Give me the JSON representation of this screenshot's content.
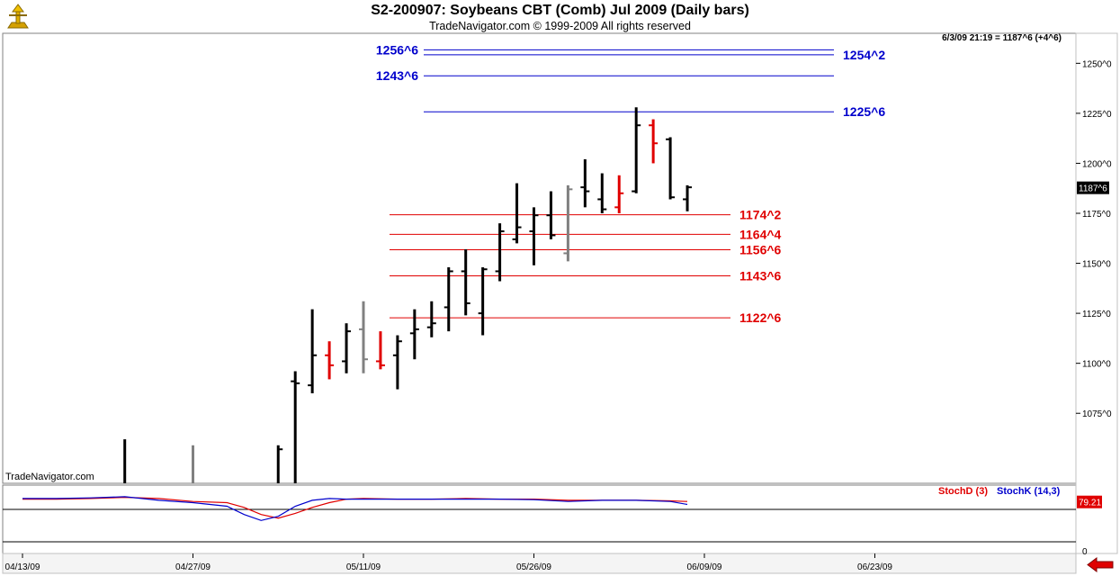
{
  "header": {
    "title": "S2-200907:  Soybeans CBT (Comb) Jul 2009  (Daily bars)",
    "subtitle": "TradeNavigator.com © 1999-2009 All rights reserved",
    "readout": "6/3/09 21:19 = 1187^6 (+4^6)",
    "watermark": "TradeNavigator.com"
  },
  "stoch_legend": {
    "d_label": "StochD (3)",
    "k_label": "StochK (14,3)",
    "d_color": "#e00000",
    "k_color": "#0000cc"
  },
  "nav": {
    "icon": "red-left-arrow-icon"
  },
  "chart_data": [
    {
      "type": "ohlc",
      "title": "S2-200907:  Soybeans CBT (Comb) Jul 2009  (Daily bars)",
      "y_ticks": [
        1075,
        1100,
        1125,
        1150,
        1175,
        1200,
        1225,
        1250
      ],
      "y_tick_labels": [
        "1075^0",
        "1100^0",
        "1125^0",
        "1150^0",
        "1175^0",
        "1200^0",
        "1225^0",
        "1250^0"
      ],
      "ylim": [
        1040,
        1265
      ],
      "x_tick_labels": [
        "04/13/09",
        "04/27/09",
        "05/11/09",
        "05/26/09",
        "06/09/09",
        "06/23/09"
      ],
      "x_tick_index": [
        0,
        10,
        20,
        30,
        40,
        50
      ],
      "last_price_label": "1187^6",
      "colors": {
        "up": "#000000",
        "down": "#e00000",
        "neutral": "#808080"
      },
      "bars": [
        {
          "i": 6,
          "o": null,
          "h": 1062,
          "l": 1040,
          "c": null,
          "color": "#000000"
        },
        {
          "i": 10,
          "o": null,
          "h": 1059,
          "l": 1040,
          "c": null,
          "color": "#808080"
        },
        {
          "i": 15,
          "o": null,
          "h": 1059,
          "l": 1040,
          "c": 1057,
          "color": "#000000"
        },
        {
          "i": 16,
          "o": 1091,
          "h": 1096,
          "l": 1040,
          "c": 1090,
          "color": "#000000"
        },
        {
          "i": 17,
          "o": 1089,
          "h": 1127,
          "l": 1085,
          "c": 1104,
          "color": "#000000"
        },
        {
          "i": 18,
          "o": 1104,
          "h": 1111,
          "l": 1092,
          "c": 1099,
          "color": "#e00000"
        },
        {
          "i": 19,
          "o": 1101,
          "h": 1120,
          "l": 1095,
          "c": 1116,
          "color": "#000000"
        },
        {
          "i": 20,
          "o": 1117,
          "h": 1131,
          "l": 1095,
          "c": 1102,
          "color": "#808080"
        },
        {
          "i": 21,
          "o": 1101,
          "h": 1116,
          "l": 1097,
          "c": 1099,
          "color": "#e00000"
        },
        {
          "i": 22,
          "o": 1104,
          "h": 1114,
          "l": 1087,
          "c": 1111,
          "color": "#000000"
        },
        {
          "i": 23,
          "o": 1115,
          "h": 1127,
          "l": 1102,
          "c": 1117,
          "color": "#000000"
        },
        {
          "i": 24,
          "o": 1118,
          "h": 1131,
          "l": 1113,
          "c": 1120,
          "color": "#000000"
        },
        {
          "i": 25,
          "o": 1128,
          "h": 1148,
          "l": 1116,
          "c": 1146,
          "color": "#000000"
        },
        {
          "i": 26,
          "o": 1146,
          "h": 1157,
          "l": 1124,
          "c": 1130,
          "color": "#000000"
        },
        {
          "i": 27,
          "o": 1125,
          "h": 1148,
          "l": 1114,
          "c": 1147,
          "color": "#000000"
        },
        {
          "i": 28,
          "o": 1146,
          "h": 1170,
          "l": 1141,
          "c": 1166,
          "color": "#000000"
        },
        {
          "i": 29,
          "o": 1162,
          "h": 1190,
          "l": 1160,
          "c": 1168,
          "color": "#000000"
        },
        {
          "i": 30,
          "o": 1166,
          "h": 1178,
          "l": 1149,
          "c": 1174,
          "color": "#000000"
        },
        {
          "i": 31,
          "o": 1174,
          "h": 1186,
          "l": 1162,
          "c": 1164,
          "color": "#000000"
        },
        {
          "i": 32,
          "o": 1155,
          "h": 1189,
          "l": 1151,
          "c": 1187,
          "color": "#808080"
        },
        {
          "i": 33,
          "o": 1188,
          "h": 1202,
          "l": 1178,
          "c": 1186,
          "color": "#000000"
        },
        {
          "i": 34,
          "o": 1182,
          "h": 1195,
          "l": 1175,
          "c": 1177,
          "color": "#000000"
        },
        {
          "i": 35,
          "o": 1178,
          "h": 1194,
          "l": 1175,
          "c": 1185,
          "color": "#e00000"
        },
        {
          "i": 36,
          "o": 1186,
          "h": 1228,
          "l": 1185,
          "c": 1219,
          "color": "#000000"
        },
        {
          "i": 37,
          "o": 1219,
          "h": 1222,
          "l": 1200,
          "c": 1210,
          "color": "#e00000"
        },
        {
          "i": 38,
          "o": 1212,
          "h": 1213,
          "l": 1182,
          "c": 1183,
          "color": "#000000"
        },
        {
          "i": 39,
          "o": 1182,
          "h": 1189,
          "l": 1176,
          "c": 1188,
          "color": "#000000"
        }
      ],
      "horizontal_levels": [
        {
          "value": 1256.75,
          "label": "1256^6",
          "color": "#0000cc",
          "label_side": "left"
        },
        {
          "value": 1254.25,
          "label": "1254^2",
          "color": "#0000cc",
          "label_side": "right"
        },
        {
          "value": 1243.75,
          "label": "1243^6",
          "color": "#0000cc",
          "label_side": "left"
        },
        {
          "value": 1225.75,
          "label": "1225^6",
          "color": "#0000cc",
          "label_side": "right"
        },
        {
          "value": 1174.25,
          "label": "1174^2",
          "color": "#e00000",
          "label_side": "right"
        },
        {
          "value": 1164.5,
          "label": "1164^4",
          "color": "#e00000",
          "label_side": "right"
        },
        {
          "value": 1156.75,
          "label": "1156^6",
          "color": "#e00000",
          "label_side": "right"
        },
        {
          "value": 1143.75,
          "label": "1143^6",
          "color": "#e00000",
          "label_side": "right"
        },
        {
          "value": 1122.75,
          "label": "1122^6",
          "color": "#e00000",
          "label_side": "right"
        }
      ]
    },
    {
      "type": "line",
      "title": "",
      "ylim": [
        0,
        100
      ],
      "y_tick_labels": [
        "0"
      ],
      "last_value_label": "79.21",
      "reference_lines": [
        20,
        80
      ],
      "series": [
        {
          "name": "StochD (3)",
          "color": "#e00000",
          "x": [
            0,
            2,
            4,
            6,
            8,
            10,
            12,
            13,
            14,
            15,
            16,
            17,
            18,
            19,
            20,
            22,
            24,
            26,
            28,
            30,
            32,
            34,
            36,
            38,
            39
          ],
          "values": [
            84,
            84,
            85,
            87,
            85,
            80,
            78,
            70,
            58,
            52,
            60,
            70,
            78,
            84,
            85,
            84,
            84,
            85,
            84,
            84,
            82,
            82,
            82,
            81,
            80
          ]
        },
        {
          "name": "StochK (14,3)",
          "color": "#0000cc",
          "x": [
            0,
            2,
            4,
            6,
            8,
            10,
            12,
            13,
            14,
            15,
            16,
            17,
            18,
            19,
            20,
            22,
            24,
            26,
            28,
            30,
            32,
            34,
            36,
            38,
            39
          ],
          "values": [
            85,
            85,
            86,
            88,
            82,
            78,
            72,
            58,
            48,
            55,
            72,
            82,
            85,
            84,
            84,
            84,
            84,
            84,
            84,
            83,
            80,
            82,
            82,
            80,
            75
          ]
        }
      ]
    }
  ]
}
